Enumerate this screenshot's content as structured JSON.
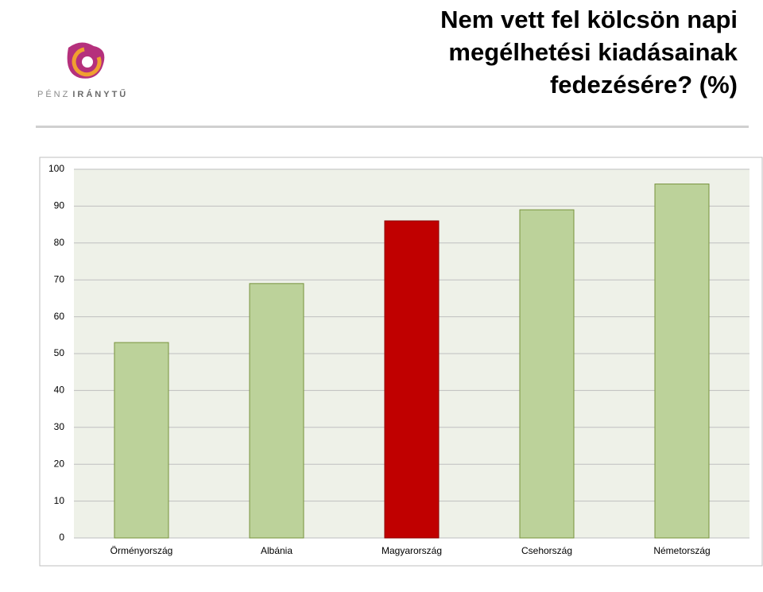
{
  "logo": [
    "PÉNZ",
    "IRÁNYTŰ"
  ],
  "chart_data": {
    "type": "bar",
    "title": "Nem vett fel kölcsön napi megélhetési kiadásainak fedezésére? (%)",
    "categories": [
      "Örményország",
      "Albánia",
      "Magyarország",
      "Csehország",
      "Németország"
    ],
    "values": [
      53,
      69,
      86,
      89,
      96
    ],
    "colors": [
      "#bcd29a",
      "#bcd29a",
      "#c00000",
      "#bcd29a",
      "#bcd29a"
    ],
    "edge_colors": [
      "#77933c",
      "#77933c",
      "#8b0000",
      "#77933c",
      "#77933c"
    ],
    "ylim": [
      0,
      100
    ],
    "yticks": [
      0,
      10,
      20,
      30,
      40,
      50,
      60,
      70,
      80,
      90,
      100
    ],
    "grid": true
  }
}
